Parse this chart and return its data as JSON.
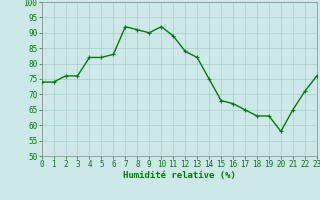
{
  "x": [
    0,
    1,
    2,
    3,
    4,
    5,
    6,
    7,
    8,
    9,
    10,
    11,
    12,
    13,
    14,
    15,
    16,
    17,
    18,
    19,
    20,
    21,
    22,
    23
  ],
  "y": [
    74,
    74,
    76,
    76,
    82,
    82,
    83,
    92,
    91,
    90,
    92,
    89,
    84,
    82,
    75,
    68,
    67,
    65,
    63,
    63,
    58,
    65,
    71,
    76
  ],
  "line_color": "#008000",
  "marker_color": "#008000",
  "bg_color": "#cce8e8",
  "grid_color": "#aacaca",
  "xlabel": "Humidité relative (%)",
  "text_color": "#008000",
  "ylim": [
    50,
    100
  ],
  "yticks": [
    50,
    55,
    60,
    65,
    70,
    75,
    80,
    85,
    90,
    95,
    100
  ],
  "xticks": [
    0,
    1,
    2,
    3,
    4,
    5,
    6,
    7,
    8,
    9,
    10,
    11,
    12,
    13,
    14,
    15,
    16,
    17,
    18,
    19,
    20,
    21,
    22,
    23
  ],
  "tick_fontsize": 5.5,
  "xlabel_fontsize": 6.5,
  "marker_size": 3,
  "line_width": 1.0
}
